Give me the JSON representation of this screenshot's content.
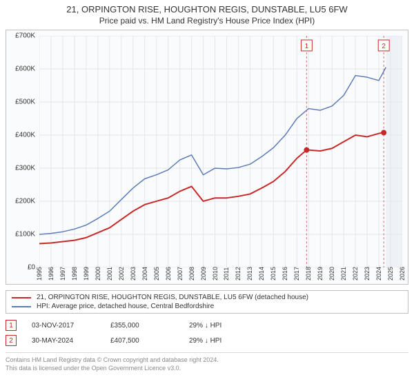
{
  "title": {
    "line1": "21, ORPINGTON RISE, HOUGHTON REGIS, DUNSTABLE, LU5 6FW",
    "line2": "Price paid vs. HM Land Registry's House Price Index (HPI)"
  },
  "chart": {
    "type": "line",
    "background_color": "#fafbfc",
    "border_color": "#bfbfbf",
    "grid_color": "#e4e6ea",
    "ylim": [
      0,
      700000
    ],
    "ytick_step": 100000,
    "ytick_labels": [
      "£0",
      "£100K",
      "£200K",
      "£300K",
      "£400K",
      "£500K",
      "£600K",
      "£700K"
    ],
    "xlim": [
      1995,
      2026
    ],
    "xtick_step": 1,
    "xtick_labels": [
      "1995",
      "1996",
      "1997",
      "1998",
      "1999",
      "2000",
      "2001",
      "2002",
      "2003",
      "2004",
      "2005",
      "2006",
      "2007",
      "2008",
      "2009",
      "2010",
      "2011",
      "2012",
      "2013",
      "2014",
      "2015",
      "2016",
      "2017",
      "2018",
      "2019",
      "2020",
      "2021",
      "2022",
      "2023",
      "2024",
      "2025",
      "2026"
    ],
    "label_fontsize": 10,
    "tick_fontsize": 9,
    "series": [
      {
        "name": "property",
        "label": "21, ORPINGTON RISE, HOUGHTON REGIS, DUNSTABLE, LU5 6FW (detached house)",
        "color": "#c82828",
        "line_width": 2,
        "x": [
          1995,
          1996,
          1997,
          1998,
          1999,
          2000,
          2001,
          2002,
          2003,
          2004,
          2005,
          2006,
          2007,
          2008,
          2009,
          2010,
          2011,
          2012,
          2013,
          2014,
          2015,
          2016,
          2017,
          2017.83,
          2018,
          2019,
          2020,
          2021,
          2022,
          2023,
          2024,
          2024.42
        ],
        "y": [
          72000,
          74000,
          78000,
          82000,
          90000,
          105000,
          120000,
          145000,
          170000,
          190000,
          200000,
          210000,
          230000,
          245000,
          200000,
          210000,
          210000,
          215000,
          222000,
          240000,
          260000,
          290000,
          330000,
          355000,
          355000,
          352000,
          360000,
          380000,
          400000,
          395000,
          405000,
          407500
        ]
      },
      {
        "name": "hpi",
        "label": "HPI: Average price, detached house, Central Bedfordshire",
        "color": "#5b7bb4",
        "line_width": 1.5,
        "x": [
          1995,
          1996,
          1997,
          1998,
          1999,
          2000,
          2001,
          2002,
          2003,
          2004,
          2005,
          2006,
          2007,
          2008,
          2009,
          2010,
          2011,
          2012,
          2013,
          2014,
          2015,
          2016,
          2017,
          2018,
          2019,
          2020,
          2021,
          2022,
          2023,
          2024,
          2024.6
        ],
        "y": [
          100000,
          103000,
          108000,
          116000,
          128000,
          148000,
          170000,
          205000,
          240000,
          268000,
          280000,
          295000,
          325000,
          340000,
          280000,
          300000,
          298000,
          302000,
          312000,
          335000,
          362000,
          400000,
          450000,
          480000,
          475000,
          488000,
          520000,
          580000,
          575000,
          565000,
          605000
        ]
      }
    ],
    "markers": [
      {
        "n": "1",
        "x": 2017.83,
        "y": 355000,
        "box_color": "#c82828",
        "dot_color": "#c82828"
      },
      {
        "n": "2",
        "x": 2024.42,
        "y": 407500,
        "box_color": "#c82828",
        "dot_color": "#c82828"
      }
    ],
    "shaded_future": {
      "from_x": 2024.6,
      "to_x": 2026,
      "fill": "#eef1f6"
    },
    "dashed_line_color": "#c86a6a"
  },
  "legend": {
    "items": [
      {
        "color": "#c82828",
        "label": "21, ORPINGTON RISE, HOUGHTON REGIS, DUNSTABLE, LU5 6FW (detached house)"
      },
      {
        "color": "#5b7bb4",
        "label": "HPI: Average price, detached house, Central Bedfordshire"
      }
    ]
  },
  "transactions": [
    {
      "n": "1",
      "date": "03-NOV-2017",
      "price": "£355,000",
      "delta": "29% ↓ HPI"
    },
    {
      "n": "2",
      "date": "30-MAY-2024",
      "price": "£407,500",
      "delta": "29% ↓ HPI"
    }
  ],
  "footer": {
    "line1": "Contains HM Land Registry data © Crown copyright and database right 2024.",
    "line2": "This data is licensed under the Open Government Licence v3.0."
  }
}
